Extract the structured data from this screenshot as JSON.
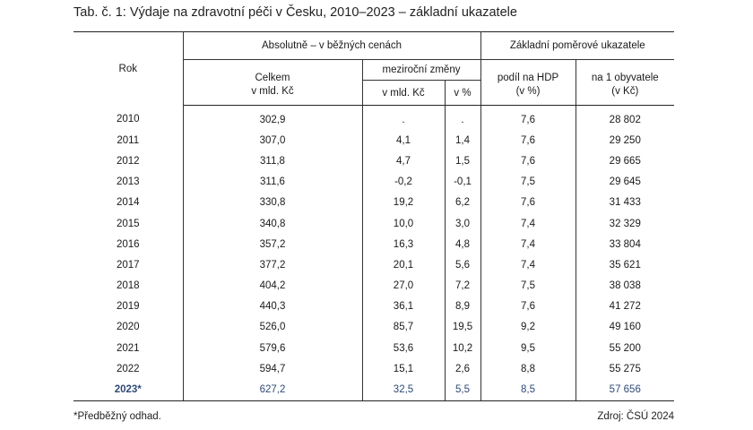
{
  "caption": "Tab. č. 1: Výdaje na zdravotní péči v Česku, 2010–2023 – základní ukazatele",
  "header": {
    "rok": "Rok",
    "group_absolute": "Absolutně – v běžných cenách",
    "group_ratio": "Základní poměrové ukazatele",
    "celkem_line1": "Celkem",
    "celkem_line2": "v mld. Kč",
    "mezirocni": "meziroční změny",
    "mez_kc": "v mld. Kč",
    "mez_pct": "v %",
    "podil_line1": "podíl na HDP",
    "podil_line2": "(v %)",
    "obyv_line1": "na 1 obyvatele",
    "obyv_line2": "(v Kč)"
  },
  "rows": [
    {
      "rok": "2010",
      "celkem": "302,9",
      "mez_kc": ".",
      "mez_pct": ".",
      "podil": "7,6",
      "obyv": "28 802"
    },
    {
      "rok": "2011",
      "celkem": "307,0",
      "mez_kc": "4,1",
      "mez_pct": "1,4",
      "podil": "7,6",
      "obyv": "29 250"
    },
    {
      "rok": "2012",
      "celkem": "311,8",
      "mez_kc": "4,7",
      "mez_pct": "1,5",
      "podil": "7,6",
      "obyv": "29 665"
    },
    {
      "rok": "2013",
      "celkem": "311,6",
      "mez_kc": "-0,2",
      "mez_pct": "-0,1",
      "podil": "7,5",
      "obyv": "29 645"
    },
    {
      "rok": "2014",
      "celkem": "330,8",
      "mez_kc": "19,2",
      "mez_pct": "6,2",
      "podil": "7,6",
      "obyv": "31 433"
    },
    {
      "rok": "2015",
      "celkem": "340,8",
      "mez_kc": "10,0",
      "mez_pct": "3,0",
      "podil": "7,4",
      "obyv": "32 329"
    },
    {
      "rok": "2016",
      "celkem": "357,2",
      "mez_kc": "16,3",
      "mez_pct": "4,8",
      "podil": "7,4",
      "obyv": "33 804"
    },
    {
      "rok": "2017",
      "celkem": "377,2",
      "mez_kc": "20,1",
      "mez_pct": "5,6",
      "podil": "7,4",
      "obyv": "35 621"
    },
    {
      "rok": "2018",
      "celkem": "404,2",
      "mez_kc": "27,0",
      "mez_pct": "7,2",
      "podil": "7,5",
      "obyv": "38 038"
    },
    {
      "rok": "2019",
      "celkem": "440,3",
      "mez_kc": "36,1",
      "mez_pct": "8,9",
      "podil": "7,6",
      "obyv": "41 272"
    },
    {
      "rok": "2020",
      "celkem": "526,0",
      "mez_kc": "85,7",
      "mez_pct": "19,5",
      "podil": "9,2",
      "obyv": "49 160"
    },
    {
      "rok": "2021",
      "celkem": "579,6",
      "mez_kc": "53,6",
      "mez_pct": "10,2",
      "podil": "9,5",
      "obyv": "55 200"
    },
    {
      "rok": "2022",
      "celkem": "594,7",
      "mez_kc": "15,1",
      "mez_pct": "2,6",
      "podil": "8,8",
      "obyv": "55 275"
    },
    {
      "rok": "2023*",
      "celkem": "627,2",
      "mez_kc": "32,5",
      "mez_pct": "5,5",
      "podil": "8,5",
      "obyv": "57 656"
    }
  ],
  "footnote": "*Předběžný odhad.",
  "source": "Zdroj: ČSÚ 2024",
  "colors": {
    "preliminary_text": "#2e4a7a"
  }
}
